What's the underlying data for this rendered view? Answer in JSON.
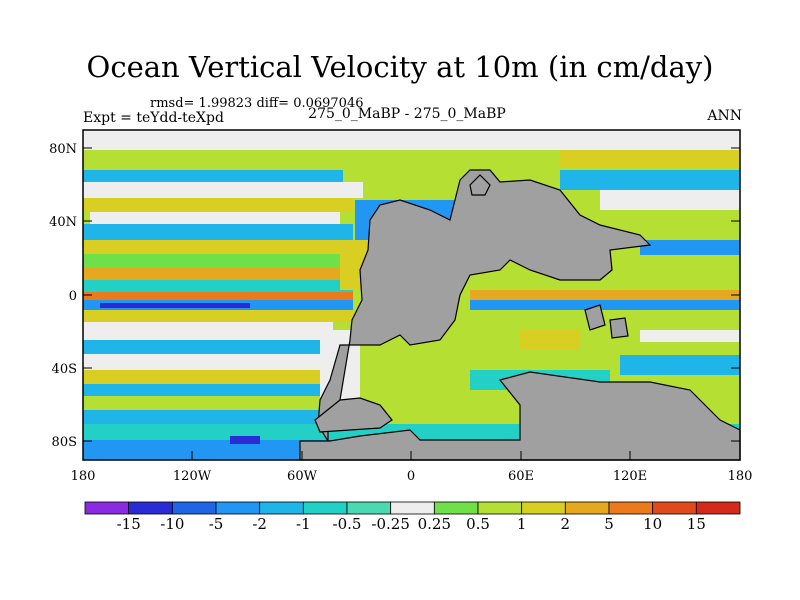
{
  "title": "Ocean Vertical Velocity at 10m (in cm/day)",
  "stats_line": "rmsd= 1.99823 diff= 0.0697046",
  "experiment_line": "Expt = teYdd-teXpd",
  "comparison": "275_0_MaBP - 275_0_MaBP",
  "season": "ANN",
  "lat_ticks": [
    "80N",
    "40N",
    "0",
    "40S",
    "80S"
  ],
  "lon_ticks": [
    "180",
    "120W",
    "60W",
    "0",
    "60E",
    "120E",
    "180"
  ],
  "colorbar": {
    "labels": [
      "-15",
      "-10",
      "-5",
      "-2",
      "-1",
      "-0.5",
      "-0.25",
      "0.25",
      "0.5",
      "1",
      "2",
      "5",
      "10",
      "15"
    ],
    "colors": [
      "#8a2be2",
      "#2b2bd6",
      "#1f66e5",
      "#2196f3",
      "#1fb5e8",
      "#22d0c6",
      "#4ad9b0",
      "#eeeeee",
      "#6fe04a",
      "#b5e033",
      "#d8cf22",
      "#e6a81e",
      "#ea7a1c",
      "#e04a1a",
      "#d42a1a"
    ]
  },
  "colors": {
    "land": "#a0a0a0",
    "coast": "#000000",
    "ice": "#eeeeee"
  }
}
